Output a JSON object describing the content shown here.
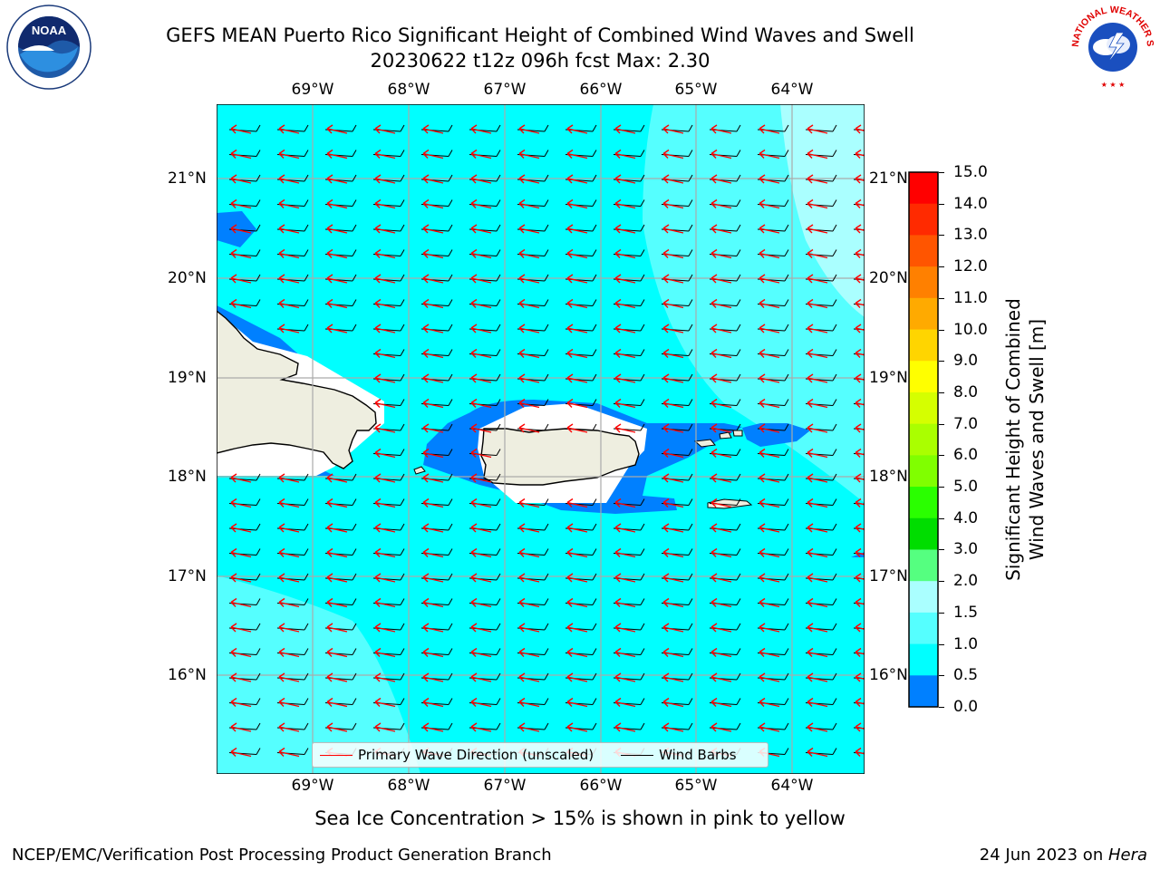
{
  "title": {
    "line1": "GEFS MEAN Puerto Rico Significant Height of Combined Wind Waves and Swell",
    "line2": "20230622 t12z 096h fcst   Max: 2.30"
  },
  "logos": {
    "left": {
      "name": "noaa-logo",
      "text": "NOAA"
    },
    "right": {
      "name": "nws-logo",
      "text": "NATIONAL WEATHER SERVICE"
    }
  },
  "map": {
    "lon_labels": [
      "69°W",
      "68°W",
      "67°W",
      "66°W",
      "65°W",
      "64°W"
    ],
    "lat_labels": [
      "21°N",
      "20°N",
      "19°N",
      "18°N",
      "17°N",
      "16°N"
    ],
    "colors": {
      "ocean_base": "#00ffff",
      "ocean_low": "#0080ff",
      "ocean_high": "#55ffff",
      "ocean_higher": "#aaffff",
      "land": "#eeeee0",
      "wave_arrow": "#ff0000",
      "barb": "#000000"
    }
  },
  "legend": {
    "primary_wave": "Primary Wave Direction (unscaled)",
    "wind_barbs": "Wind Barbs"
  },
  "colorbar": {
    "title_line1": "Significant Height of Combined",
    "title_line2": "Wind Waves and Swell [m]",
    "ticks": [
      "15.0",
      "14.0",
      "13.0",
      "12.0",
      "11.0",
      "10.0",
      "9.0",
      "8.0",
      "7.0",
      "6.0",
      "5.0",
      "4.0",
      "3.0",
      "2.0",
      "1.5",
      "1.0",
      "0.5",
      "0.0"
    ],
    "colors_top_to_bottom": [
      "#ff0000",
      "#ff2a00",
      "#ff5500",
      "#ff8000",
      "#ffaa00",
      "#ffd500",
      "#ffff00",
      "#d5ff00",
      "#aaff00",
      "#80ff00",
      "#2aff00",
      "#00dd00",
      "#55ff80",
      "#aaffff",
      "#55ffff",
      "#00ffff",
      "#0080ff",
      "#0000ff"
    ]
  },
  "footer": {
    "sea_ice_note": "Sea Ice Concentration > 15% is shown in pink to yellow",
    "credit": "NCEP/EMC/Verification Post Processing Product Generation Branch",
    "date": "24 Jun 2023 on ",
    "host": "Hera"
  }
}
